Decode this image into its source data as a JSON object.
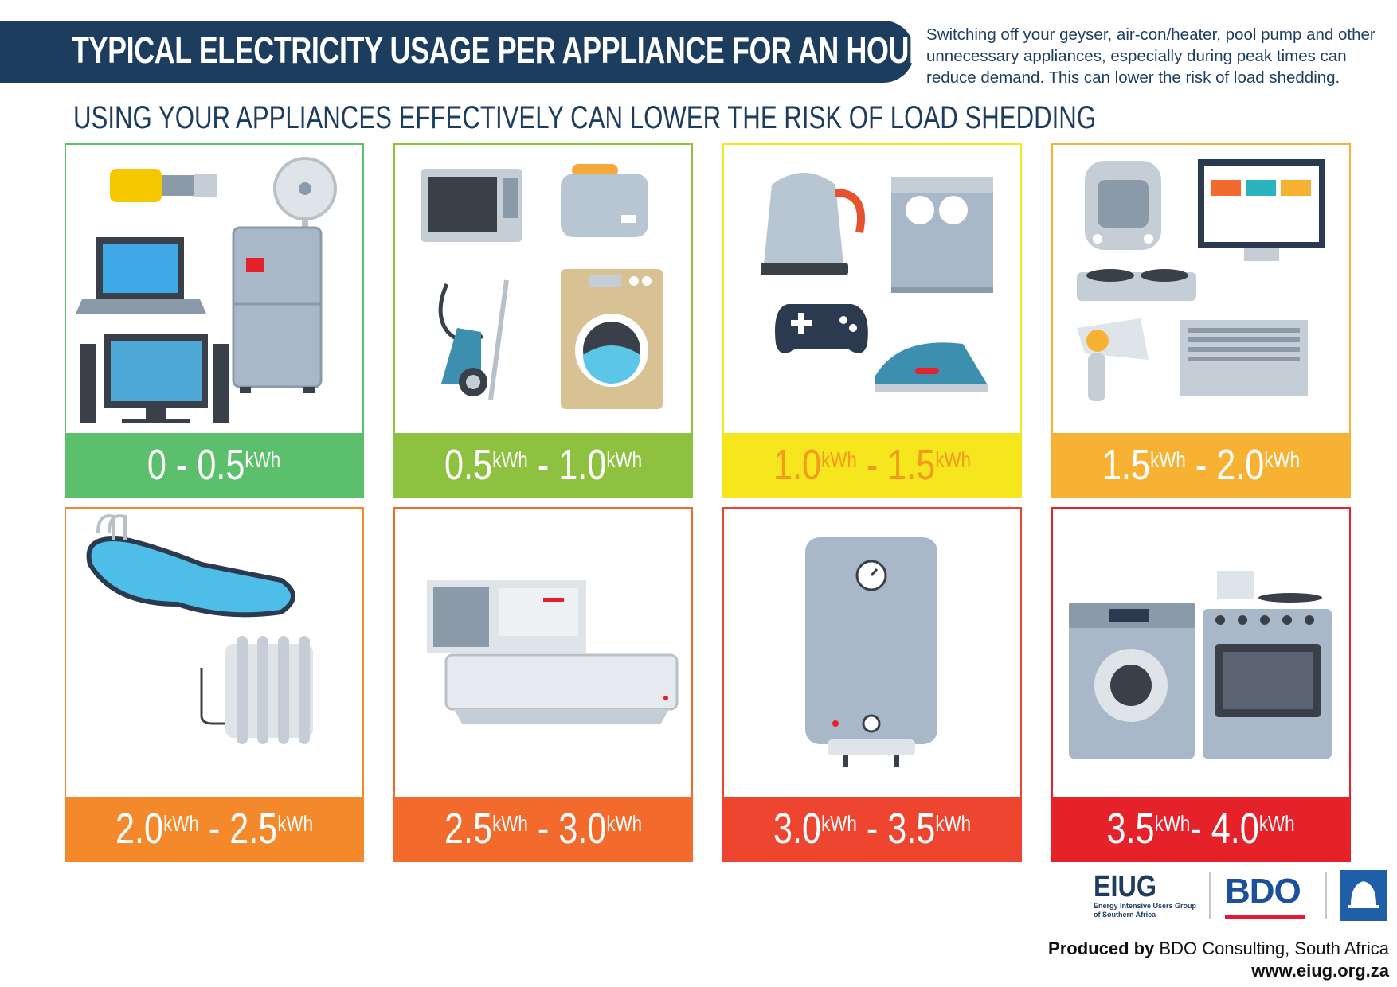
{
  "header": {
    "title": "TYPICAL ELECTRICITY USAGE PER APPLIANCE FOR AN HOUR",
    "intro": "Switching off your geyser, air-con/heater, pool pump and other unnecessary appliances, especially during peak times can reduce demand. This can lower the risk of load shedding.",
    "subtitle": "USING YOUR APPLIANCES EFFECTIVELY CAN LOWER THE RISK OF LOAD SHEDDING"
  },
  "cards": [
    {
      "range": [
        "0 - 0.5",
        "kWh"
      ],
      "color": "#5cbf6b",
      "text_color": "#ffffff"
    },
    {
      "range": [
        "0.5",
        "kWh",
        " - 1.0",
        "kWh"
      ],
      "color": "#8dc13f",
      "text_color": "#ffffff"
    },
    {
      "range": [
        "1.0",
        "kWh",
        " - 1.5",
        "kWh"
      ],
      "color": "#f5e61d",
      "text_color": "#f39a1f"
    },
    {
      "range": [
        "1.5",
        "kWh",
        " - 2.0",
        "kWh"
      ],
      "color": "#f7b233",
      "text_color": "#ffffff"
    },
    {
      "range": [
        "2.0",
        "kWh",
        " - 2.5",
        "kWh"
      ],
      "color": "#f4892b",
      "text_color": "#ffffff"
    },
    {
      "range": [
        "2.5",
        "kWh",
        " - 3.0",
        "kWh"
      ],
      "color": "#f26a2c",
      "text_color": "#ffffff"
    },
    {
      "range": [
        "3.0",
        "kWh",
        " - 3.5",
        "kWh"
      ],
      "color": "#ee4530",
      "text_color": "#ffffff"
    },
    {
      "range": [
        "3.5",
        "kWh",
        "- 4.0",
        "kWh"
      ],
      "color": "#e52129",
      "text_color": "#ffffff"
    }
  ],
  "footer": {
    "eiug": "EIUG",
    "eiug_line1": "Energy Intensive Users Group",
    "eiug_line2": "of Southern Africa",
    "bdo": "BDO",
    "ethekwini": "ETHEKWINI MUNICIPALITY",
    "produced_by": "Produced by",
    "produced_rest": " BDO Consulting, South Africa",
    "website": "www.eiug.org.za"
  }
}
